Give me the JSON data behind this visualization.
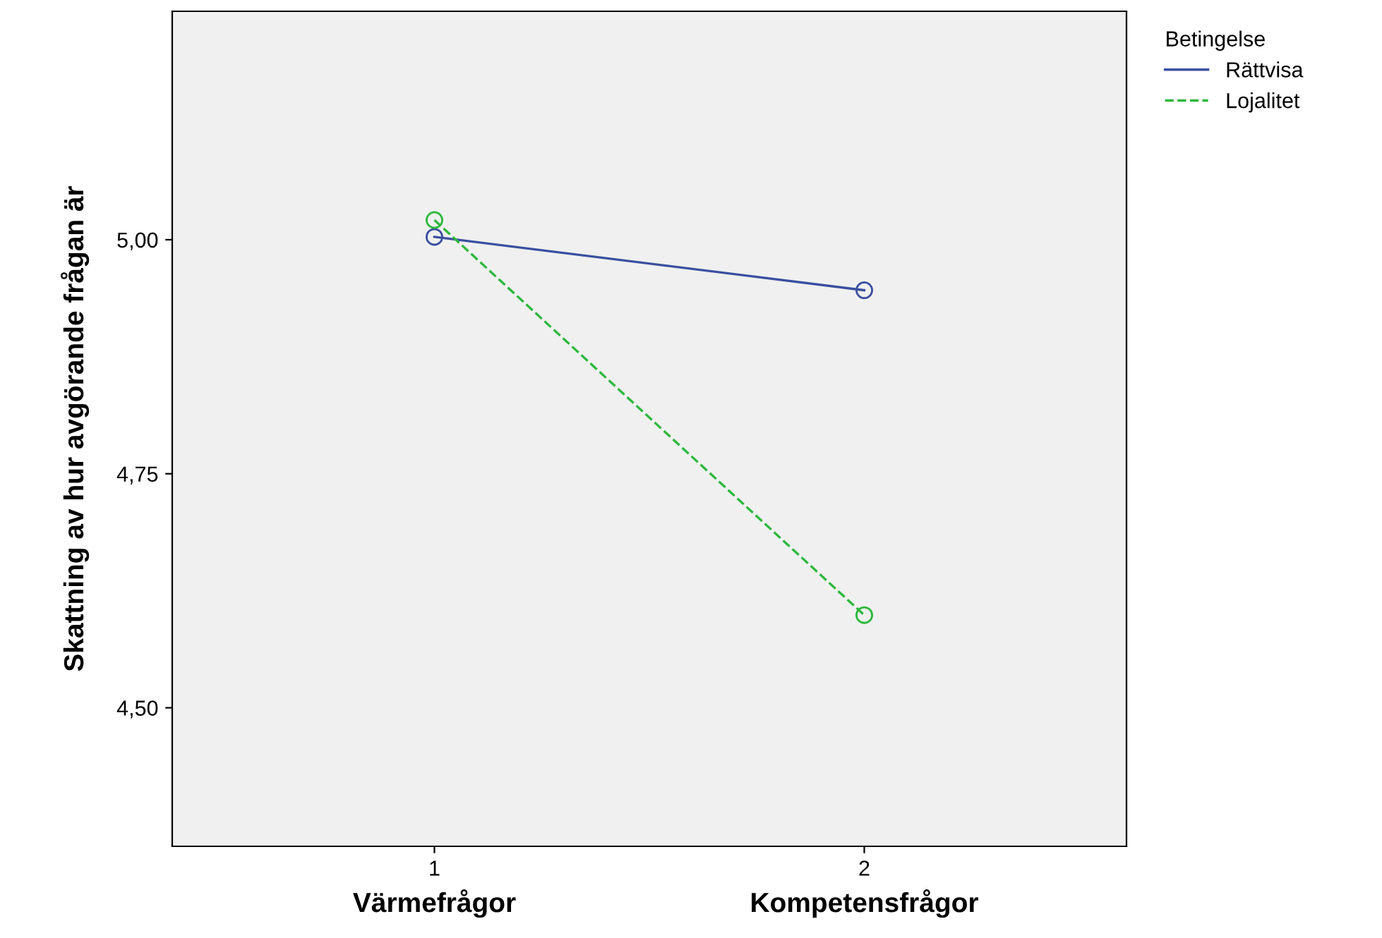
{
  "chart_data": {
    "type": "line",
    "ylabel": "Skattning av hur avgörande frågan är",
    "legend_title": "Betingelse",
    "x": [
      1,
      2
    ],
    "xlim": [
      0.39,
      2.61
    ],
    "xticks": [
      1,
      2
    ],
    "ylim": [
      4.352,
      5.244
    ],
    "yticks": [
      {
        "value": 4.5,
        "label": "4,50"
      },
      {
        "value": 4.75,
        "label": "4,75"
      },
      {
        "value": 5.0,
        "label": "5,00"
      }
    ],
    "series": [
      {
        "name": "Rättvisa",
        "color": "#3a4fa0",
        "values": [
          5.003,
          4.946
        ],
        "line_style": "solid"
      },
      {
        "name": "Lojalitet",
        "color": "#2db83d",
        "values": [
          5.021,
          4.599
        ],
        "line_style": "dashed"
      }
    ],
    "annotations": [
      "Värmefrågor",
      "Kompetensfrågor"
    ],
    "marker": "circle",
    "legend": "top right",
    "grid": false
  }
}
